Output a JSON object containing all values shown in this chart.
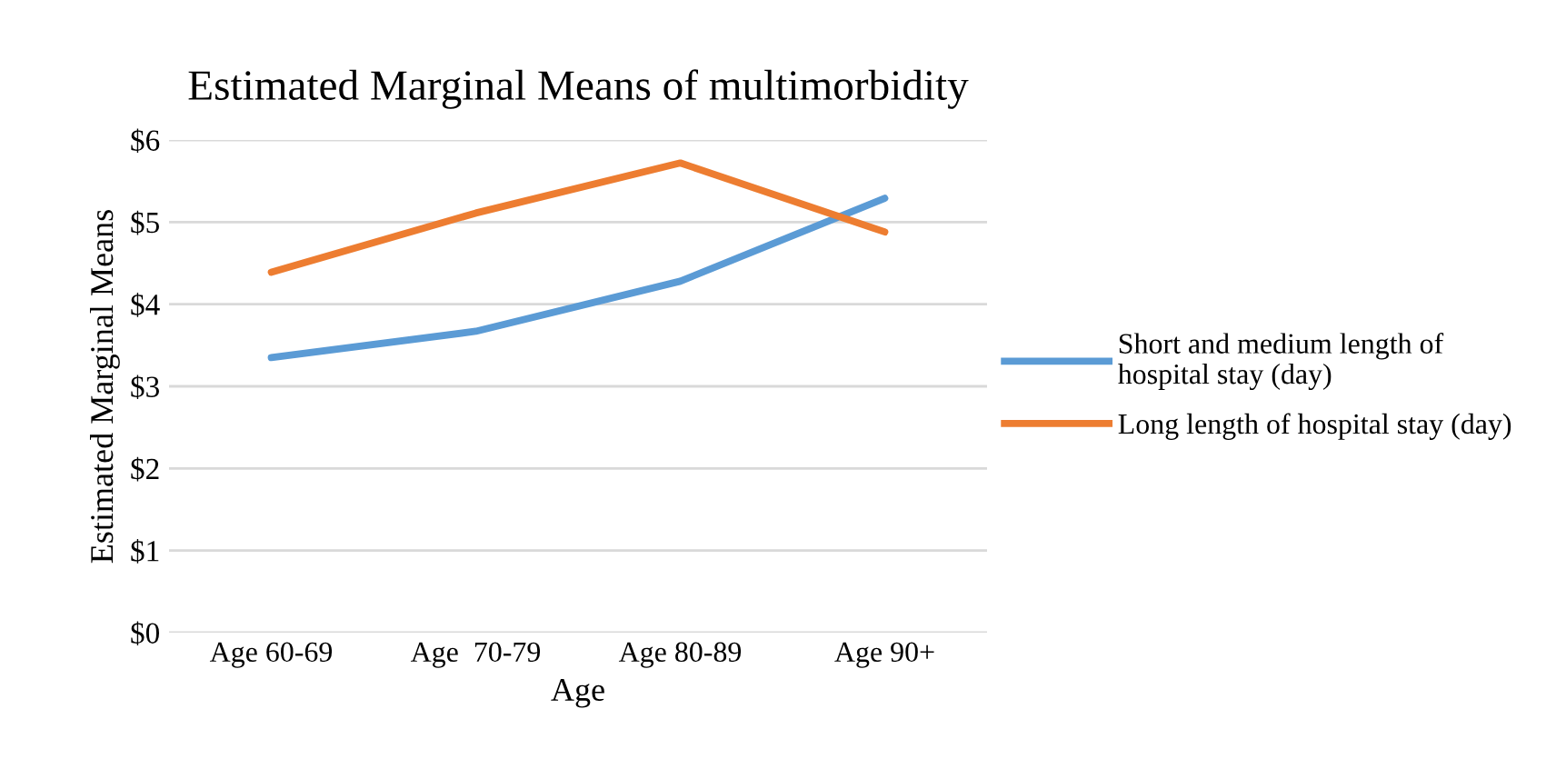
{
  "chart_data": {
    "type": "line",
    "title": "Estimated Marginal Means of multimorbidity",
    "xlabel": "Age",
    "ylabel": "Estimated Marginal Means",
    "categories": [
      "Age 60-69",
      "Age  70-79",
      "Age 80-89",
      "Age 90+"
    ],
    "series": [
      {
        "name": "Short and medium length of hospital stay (day)",
        "color": "#5b9bd5",
        "values": [
          3.35,
          3.67,
          4.28,
          5.29
        ]
      },
      {
        "name": "Long length of hospital stay (day)",
        "color": "#ed7d31",
        "values": [
          4.39,
          5.11,
          5.72,
          4.88
        ]
      }
    ],
    "ylim": [
      0,
      6
    ],
    "yticks": [
      {
        "value": 0,
        "label": "$0"
      },
      {
        "value": 1,
        "label": "$1"
      },
      {
        "value": 2,
        "label": "$2"
      },
      {
        "value": 3,
        "label": "$3"
      },
      {
        "value": 4,
        "label": "$4"
      },
      {
        "value": 5,
        "label": "$5"
      },
      {
        "value": 6,
        "label": "$6"
      }
    ],
    "grid": "y",
    "legend": "right",
    "marker": "none",
    "line_style": "solid"
  }
}
